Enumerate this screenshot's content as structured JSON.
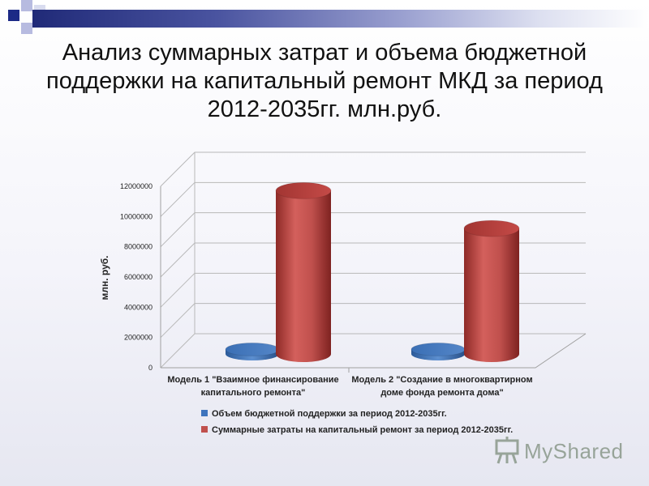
{
  "title": "Анализ суммарных затрат и объема бюджетной поддержки на капитальный ремонт МКД за период 2012-2035гг. млн.руб.",
  "watermark": {
    "text": "MyShared",
    "icon": "presentation-board-icon"
  },
  "colors": {
    "budget_support": "#3e74bd",
    "total_costs": "#c0504d"
  },
  "chart_data": {
    "type": "bar",
    "style": "3d-cylinder",
    "categories": [
      "Модель 1 \"Взаимное финансирование капитального ремонта\"",
      "Модель 2 \"Создание в многоквартирном доме фонда ремонта дома\""
    ],
    "category_lines": [
      [
        "Модель 1 \"Взаимное финансирование",
        "капитального ремонта\""
      ],
      [
        "Модель 2 \"Создание в многоквартирном",
        "доме фонда ремонта дома\""
      ]
    ],
    "series": [
      {
        "name": "Объем бюджетной поддержки за период 2012-2035гг.",
        "values": [
          300000,
          300000
        ]
      },
      {
        "name": "Суммарные затраты на капитальный ремонт за период 2012-2035гг.",
        "values": [
          10800000,
          8300000
        ]
      }
    ],
    "ylabel": "млн. руб.",
    "ylim": [
      0,
      12000000
    ],
    "yticks": [
      "0",
      "2000000",
      "4000000",
      "6000000",
      "8000000",
      "10000000",
      "12000000"
    ],
    "grid": true,
    "legend": "bottom"
  }
}
